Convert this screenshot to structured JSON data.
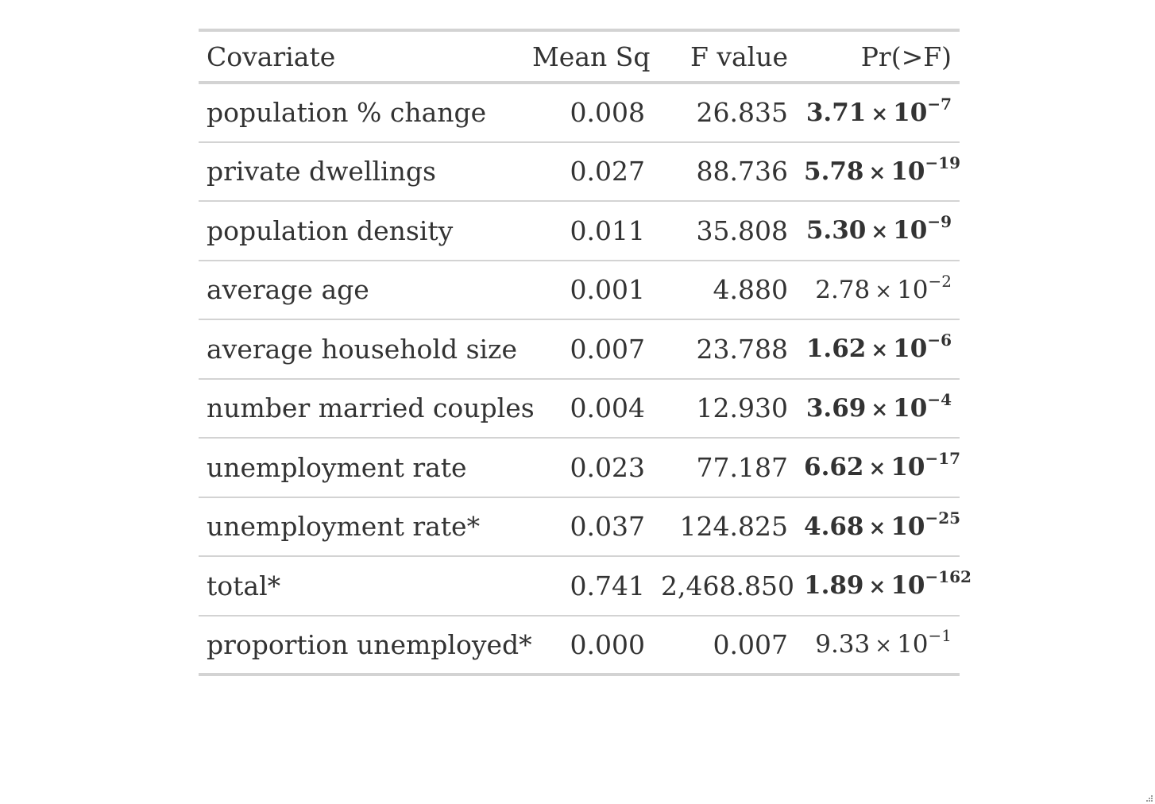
{
  "table": {
    "headers": [
      "Covariate",
      "Mean Sq",
      "F value",
      "Pr(>F)"
    ],
    "rows": [
      {
        "covariate": "population % change",
        "mean_sq": "0.008",
        "f_value": "26.835",
        "p_mantissa": "3.71",
        "p_times": "×",
        "p_base": "10",
        "p_exponent": "−7",
        "significant": true
      },
      {
        "covariate": "private dwellings",
        "mean_sq": "0.027",
        "f_value": "88.736",
        "p_mantissa": "5.78",
        "p_times": "×",
        "p_base": "10",
        "p_exponent": "−19",
        "significant": true
      },
      {
        "covariate": "population density",
        "mean_sq": "0.011",
        "f_value": "35.808",
        "p_mantissa": "5.30",
        "p_times": "×",
        "p_base": "10",
        "p_exponent": "−9",
        "significant": true
      },
      {
        "covariate": "average age",
        "mean_sq": "0.001",
        "f_value": "4.880",
        "p_mantissa": "2.78",
        "p_times": "×",
        "p_base": "10",
        "p_exponent": "−2",
        "significant": false
      },
      {
        "covariate": "average household size",
        "mean_sq": "0.007",
        "f_value": "23.788",
        "p_mantissa": "1.62",
        "p_times": "×",
        "p_base": "10",
        "p_exponent": "−6",
        "significant": true
      },
      {
        "covariate": "number married couples",
        "mean_sq": "0.004",
        "f_value": "12.930",
        "p_mantissa": "3.69",
        "p_times": "×",
        "p_base": "10",
        "p_exponent": "−4",
        "significant": true
      },
      {
        "covariate": "unemployment rate",
        "mean_sq": "0.023",
        "f_value": "77.187",
        "p_mantissa": "6.62",
        "p_times": "×",
        "p_base": "10",
        "p_exponent": "−17",
        "significant": true
      },
      {
        "covariate": "unemployment rate*",
        "mean_sq": "0.037",
        "f_value": "124.825",
        "p_mantissa": "4.68",
        "p_times": "×",
        "p_base": "10",
        "p_exponent": "−25",
        "significant": true
      },
      {
        "covariate": "total*",
        "mean_sq": "0.741",
        "f_value": "2,468.850",
        "p_mantissa": "1.89",
        "p_times": "×",
        "p_base": "10",
        "p_exponent": "−162",
        "significant": true
      },
      {
        "covariate": "proportion unemployed*",
        "mean_sq": "0.000",
        "f_value": "0.007",
        "p_mantissa": "9.33",
        "p_times": "×",
        "p_base": "10",
        "p_exponent": "−1",
        "significant": false
      }
    ]
  },
  "colors": {
    "text": "#333333",
    "rule": "#d3d3d3",
    "background": "#ffffff"
  },
  "icons": {
    "corner": "resize-grip-icon"
  }
}
